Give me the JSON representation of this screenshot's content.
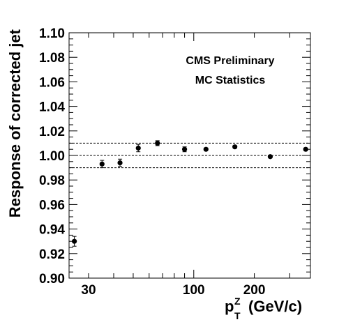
{
  "chart_data": {
    "type": "scatter",
    "xscale": "log",
    "xlim": [
      24,
      380
    ],
    "ylim": [
      0.9,
      1.1
    ],
    "xlabel": {
      "main": "p",
      "sub": "T",
      "sup": "Z",
      "unit": "(GeV/c)"
    },
    "ylabel": "Response of corrected jet",
    "x_ticks": [
      30,
      100,
      200
    ],
    "x_tick_labels": [
      "30",
      "100",
      "200"
    ],
    "y_ticks": [
      0.9,
      0.92,
      0.94,
      0.96,
      0.98,
      1.0,
      1.02,
      1.04,
      1.06,
      1.08,
      1.1
    ],
    "y_tick_labels": [
      "0.90",
      "0.92",
      "0.94",
      "0.96",
      "0.98",
      "1.00",
      "1.02",
      "1.04",
      "1.06",
      "1.08",
      "1.10"
    ],
    "annotations": [
      "CMS Preliminary",
      "MC Statistics"
    ],
    "reference_lines": [
      0.99,
      1.0,
      1.01
    ],
    "grid": false,
    "series": [
      {
        "x": [
          25.5,
          35,
          43,
          53,
          66,
          90,
          115,
          160,
          240,
          360
        ],
        "y": [
          0.93,
          0.993,
          0.994,
          1.006,
          1.01,
          1.005,
          1.005,
          1.007,
          0.999,
          1.005
        ],
        "yerr": [
          0.004,
          0.003,
          0.003,
          0.003,
          0.002,
          0.002,
          0.001,
          0.001,
          0.001,
          0.001
        ]
      }
    ]
  }
}
